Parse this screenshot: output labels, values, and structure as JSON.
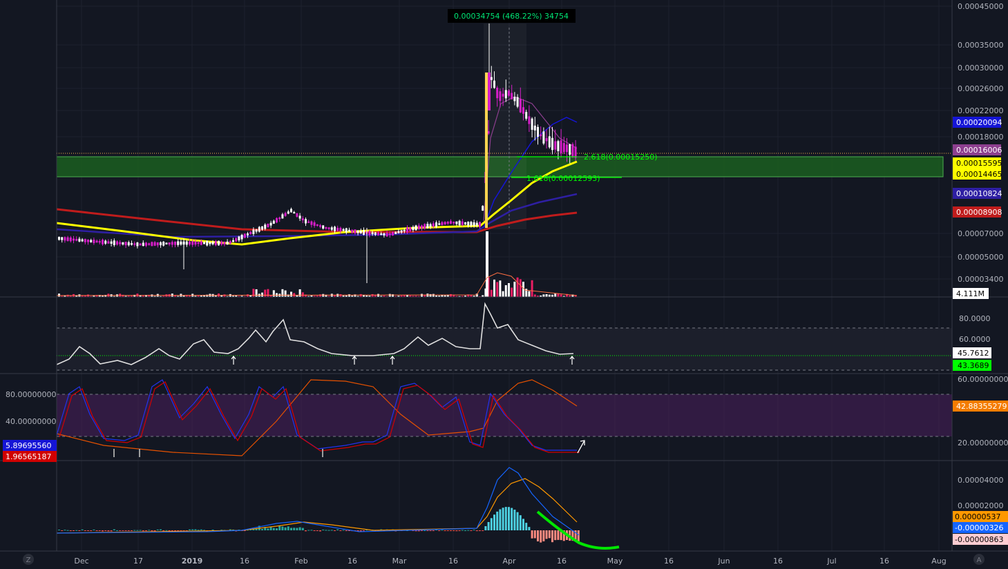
{
  "colors": {
    "background": "#131722",
    "grid": "#1e222d",
    "up": "#ffffff",
    "down": "#d61ec8",
    "ema_fast": "#ffff00",
    "ema_mid": "#2e1fa3",
    "ema_slow": "#c01c1c",
    "green_zone": "#1e7d32"
  },
  "chart_data": [
    {
      "type": "candlestick",
      "pane": "price",
      "y_ticks": [
        "0.00045000",
        "0.00035000",
        "0.00030000",
        "0.00026000",
        "0.00022000",
        "0.00018000",
        "0.00007000",
        "0.00005000",
        "0.00003400"
      ],
      "price_tags": [
        {
          "label": "0.00020094",
          "bg": "#1515d6",
          "fg": "#ffffff"
        },
        {
          "label": "0.00016006",
          "bg": "#8d3f8f",
          "fg": "#ffffff"
        },
        {
          "label": "0.00015595",
          "bg": "#ffff00",
          "fg": "#000000"
        },
        {
          "label": "0.00014465",
          "bg": "#ffff00",
          "fg": "#000000"
        },
        {
          "label": "0.00010824",
          "bg": "#2e1fa3",
          "fg": "#ffffff"
        },
        {
          "label": "0.00008908",
          "bg": "#c01c1c",
          "fg": "#ffffff"
        },
        {
          "label": "4.111M",
          "bg": "#ffffff",
          "fg": "#000000"
        }
      ],
      "measure_label": "0.00034754 (468.22%) 34754",
      "fib_labels": [
        "2.618(0.00015250)",
        "1.618(0.00012593)"
      ],
      "zone": {
        "from": 0.00014465,
        "to": 0.00015595
      }
    },
    {
      "type": "line",
      "pane": "rsi",
      "y_ticks": [
        "80.0000",
        "60.0000"
      ],
      "tags": [
        {
          "label": "45.7612",
          "bg": "#ffffff",
          "fg": "#000000"
        },
        {
          "label": "43.3689",
          "bg": "#00ff00",
          "fg": "#000000"
        }
      ]
    },
    {
      "type": "line",
      "pane": "stoch",
      "y_ticks_left": [
        "80.00000000",
        "40.00000000"
      ],
      "y_ticks_right": [
        "60.00000000",
        "20.00000000"
      ],
      "tags_left": [
        {
          "label": "5.89695560",
          "bg": "#1515d6",
          "fg": "#ffffff"
        },
        {
          "label": "1.96565187",
          "bg": "#d10000",
          "fg": "#ffffff"
        }
      ],
      "tags_right": [
        {
          "label": "42.88355279",
          "bg": "#f57c00",
          "fg": "#ffffff"
        }
      ]
    },
    {
      "type": "bar",
      "pane": "macd",
      "y_ticks": [
        "0.00004000",
        "0.00002000"
      ],
      "tags": [
        {
          "label": "0.00000537",
          "bg": "#ff9800",
          "fg": "#000000"
        },
        {
          "label": "-0.00000326",
          "bg": "#1565ff",
          "fg": "#ffffff"
        },
        {
          "label": "-0.00000863",
          "bg": "#ffcdd2",
          "fg": "#000000"
        }
      ]
    }
  ],
  "time_axis": {
    "labels": [
      "Dec",
      "17",
      "2019",
      "16",
      "Feb",
      "16",
      "Mar",
      "16",
      "Apr",
      "16",
      "May",
      "16",
      "Jun",
      "16",
      "Jul",
      "16",
      "Aug"
    ]
  },
  "corner_left": "Z",
  "corner_right": "A"
}
